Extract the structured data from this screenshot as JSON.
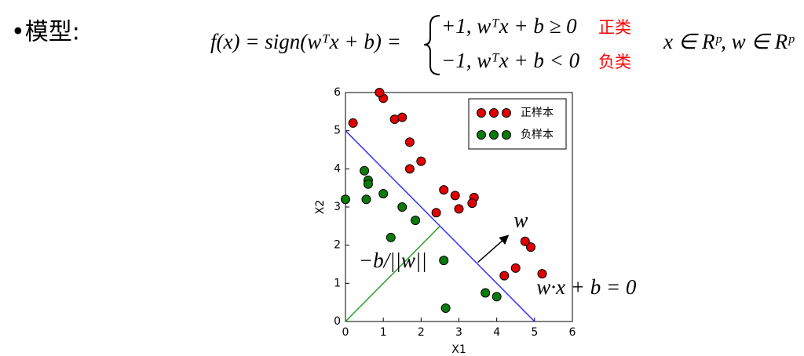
{
  "bullet": "•模型:",
  "formula": {
    "lhs": "f(x) = sign(wᵀx + b) =",
    "case1": "+1, wᵀx + b ≥ 0",
    "label1": "正类",
    "case2": "−1, wᵀx + b < 0",
    "label2": "负类",
    "domain": "x ∈ Rᵖ, w ∈ Rᵖ"
  },
  "chart_data": {
    "type": "scatter",
    "x_label": "X1",
    "y_label": "X2",
    "xlim": [
      0,
      6
    ],
    "ylim": [
      0,
      6
    ],
    "xticks": [
      0,
      1,
      2,
      3,
      4,
      5,
      6
    ],
    "yticks": [
      0,
      1,
      2,
      3,
      4,
      5,
      6
    ],
    "legend": "upper right",
    "series": [
      {
        "name": "正样本",
        "color": "#e00000",
        "x": [
          0.2,
          1.0,
          0.9,
          1.3,
          1.5,
          1.7,
          1.7,
          2.0,
          2.6,
          2.9,
          3.0,
          3.4,
          3.35,
          2.4,
          4.75,
          4.9,
          4.5,
          4.2,
          5.2
        ],
        "values": [
          5.2,
          5.85,
          6.0,
          5.3,
          5.35,
          4.7,
          4.0,
          4.2,
          3.45,
          3.3,
          2.95,
          3.25,
          3.1,
          2.85,
          2.1,
          1.95,
          1.4,
          1.2,
          1.25
        ]
      },
      {
        "name": "负样本",
        "color": "#0a7a0a",
        "x": [
          0,
          0.5,
          0.6,
          0.6,
          0.55,
          1.0,
          1.5,
          1.85,
          1.2,
          2.6,
          2.65,
          3.7,
          4.0
        ],
        "values": [
          3.2,
          3.95,
          3.7,
          3.6,
          3.2,
          3.35,
          3.0,
          2.65,
          2.2,
          1.6,
          0.35,
          0.75,
          0.65
        ]
      }
    ],
    "lines": [
      {
        "color": "#3333ff",
        "x": [
          0,
          5
        ],
        "values": [
          5,
          0
        ]
      },
      {
        "color": "#2ca02c",
        "x": [
          0,
          2.5
        ],
        "values": [
          0,
          2.5
        ]
      },
      {
        "color": "#000000",
        "x": [
          3.5,
          4.3
        ],
        "values": [
          1.55,
          2.25
        ]
      }
    ],
    "annotations": [
      "w",
      "−b/||w||",
      "w·x + b = 0"
    ]
  }
}
